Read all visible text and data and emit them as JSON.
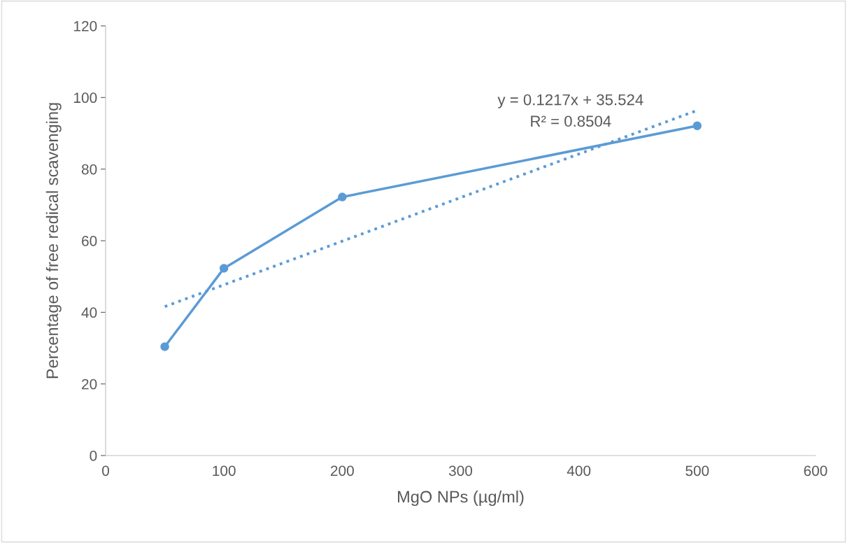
{
  "chart_data": {
    "type": "line",
    "xlabel": "MgO NPs (µg/ml)",
    "ylabel": "Percentage of free redical scavenging",
    "xlim": [
      0,
      600
    ],
    "xticks": [
      0,
      100,
      200,
      300,
      400,
      500,
      600
    ],
    "ylim": [
      0,
      120
    ],
    "yticks": [
      0,
      20,
      40,
      60,
      80,
      100,
      120
    ],
    "grid": false,
    "legend": false,
    "annotations": [
      "y = 0.1217x + 35.524",
      "R² = 0.8504"
    ],
    "series": [
      {
        "color": "#5b9bd5",
        "marker": "circle",
        "line_style": "solid",
        "x": [
          50,
          100,
          200,
          500
        ],
        "values": [
          30.4,
          52.3,
          72.2,
          92.1
        ]
      },
      {
        "color": "#5b9bd5",
        "marker": "none",
        "line_style": "dotted",
        "x": [
          50,
          500
        ],
        "values": [
          41.6,
          96.4
        ]
      }
    ]
  }
}
